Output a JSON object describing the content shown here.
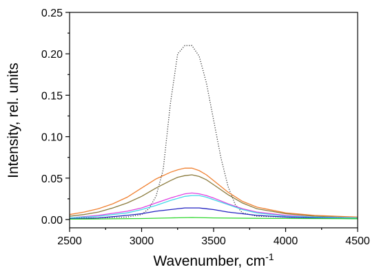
{
  "chart_data": {
    "type": "line",
    "title": "",
    "xlabel": "Wavenumber, cm",
    "xlabel_sup": "-1",
    "ylabel": "Intensity, rel. units",
    "xlim": [
      2500,
      4500
    ],
    "ylim": [
      -0.01,
      0.25
    ],
    "xticks": [
      "2500",
      "3000",
      "3500",
      "4000",
      "4500"
    ],
    "yticks": [
      "0.00",
      "0.05",
      "0.10",
      "0.15",
      "0.20",
      "0.25"
    ],
    "grid": false,
    "legend": "none",
    "series": [
      {
        "color": "#333333",
        "dash": "dotted",
        "x": [
          2500,
          2700,
          2900,
          3000,
          3050,
          3100,
          3150,
          3200,
          3250,
          3300,
          3350,
          3400,
          3450,
          3500,
          3550,
          3600,
          3650,
          3700,
          3800,
          4000,
          4200,
          4500
        ],
        "y": [
          0.002,
          0.002,
          0.003,
          0.006,
          0.013,
          0.028,
          0.06,
          0.14,
          0.2,
          0.21,
          0.21,
          0.197,
          0.165,
          0.12,
          0.075,
          0.04,
          0.018,
          0.008,
          0.004,
          0.003,
          0.002,
          0.002
        ]
      },
      {
        "color": "#f08030",
        "dash": "solid",
        "x": [
          2500,
          2600,
          2700,
          2800,
          2900,
          3000,
          3100,
          3200,
          3250,
          3300,
          3350,
          3400,
          3450,
          3500,
          3600,
          3700,
          3800,
          4000,
          4200,
          4500
        ],
        "y": [
          0.006,
          0.009,
          0.013,
          0.019,
          0.027,
          0.038,
          0.049,
          0.057,
          0.06,
          0.062,
          0.062,
          0.059,
          0.054,
          0.047,
          0.033,
          0.022,
          0.015,
          0.008,
          0.005,
          0.003
        ]
      },
      {
        "color": "#8a7a3c",
        "dash": "solid",
        "x": [
          2500,
          2600,
          2700,
          2800,
          2900,
          3000,
          3100,
          3200,
          3250,
          3300,
          3350,
          3400,
          3450,
          3500,
          3600,
          3700,
          3800,
          4000,
          4200,
          4500
        ],
        "y": [
          0.004,
          0.006,
          0.009,
          0.014,
          0.02,
          0.028,
          0.038,
          0.047,
          0.051,
          0.053,
          0.054,
          0.052,
          0.048,
          0.042,
          0.03,
          0.02,
          0.013,
          0.007,
          0.004,
          0.002
        ]
      },
      {
        "color": "#e040e0",
        "dash": "solid",
        "x": [
          2500,
          2700,
          2900,
          3000,
          3100,
          3200,
          3300,
          3350,
          3400,
          3450,
          3500,
          3600,
          3700,
          3800,
          4000,
          4200,
          4500
        ],
        "y": [
          0.002,
          0.005,
          0.01,
          0.014,
          0.02,
          0.026,
          0.031,
          0.032,
          0.031,
          0.029,
          0.026,
          0.019,
          0.013,
          0.009,
          0.005,
          0.003,
          0.002
        ]
      },
      {
        "color": "#40d8e8",
        "dash": "solid",
        "x": [
          2500,
          2700,
          2900,
          3000,
          3100,
          3200,
          3300,
          3350,
          3400,
          3450,
          3500,
          3600,
          3700,
          3800,
          4000,
          4200,
          4500
        ],
        "y": [
          0.002,
          0.004,
          0.008,
          0.012,
          0.017,
          0.023,
          0.028,
          0.029,
          0.029,
          0.027,
          0.024,
          0.018,
          0.012,
          0.008,
          0.004,
          0.003,
          0.002
        ]
      },
      {
        "color": "#2020c0",
        "dash": "solid",
        "x": [
          2500,
          2700,
          2900,
          3000,
          3100,
          3200,
          3300,
          3350,
          3400,
          3450,
          3500,
          3600,
          3700,
          3800,
          4000,
          4200,
          4500
        ],
        "y": [
          0.001,
          0.002,
          0.005,
          0.007,
          0.01,
          0.012,
          0.014,
          0.014,
          0.014,
          0.013,
          0.012,
          0.009,
          0.007,
          0.005,
          0.003,
          0.002,
          0.001
        ]
      },
      {
        "color": "#30d830",
        "dash": "solid",
        "x": [
          2500,
          3000,
          3200,
          3350,
          3500,
          3800,
          4500
        ],
        "y": [
          0.0005,
          0.0012,
          0.002,
          0.0025,
          0.002,
          0.0015,
          0.001
        ]
      }
    ]
  }
}
